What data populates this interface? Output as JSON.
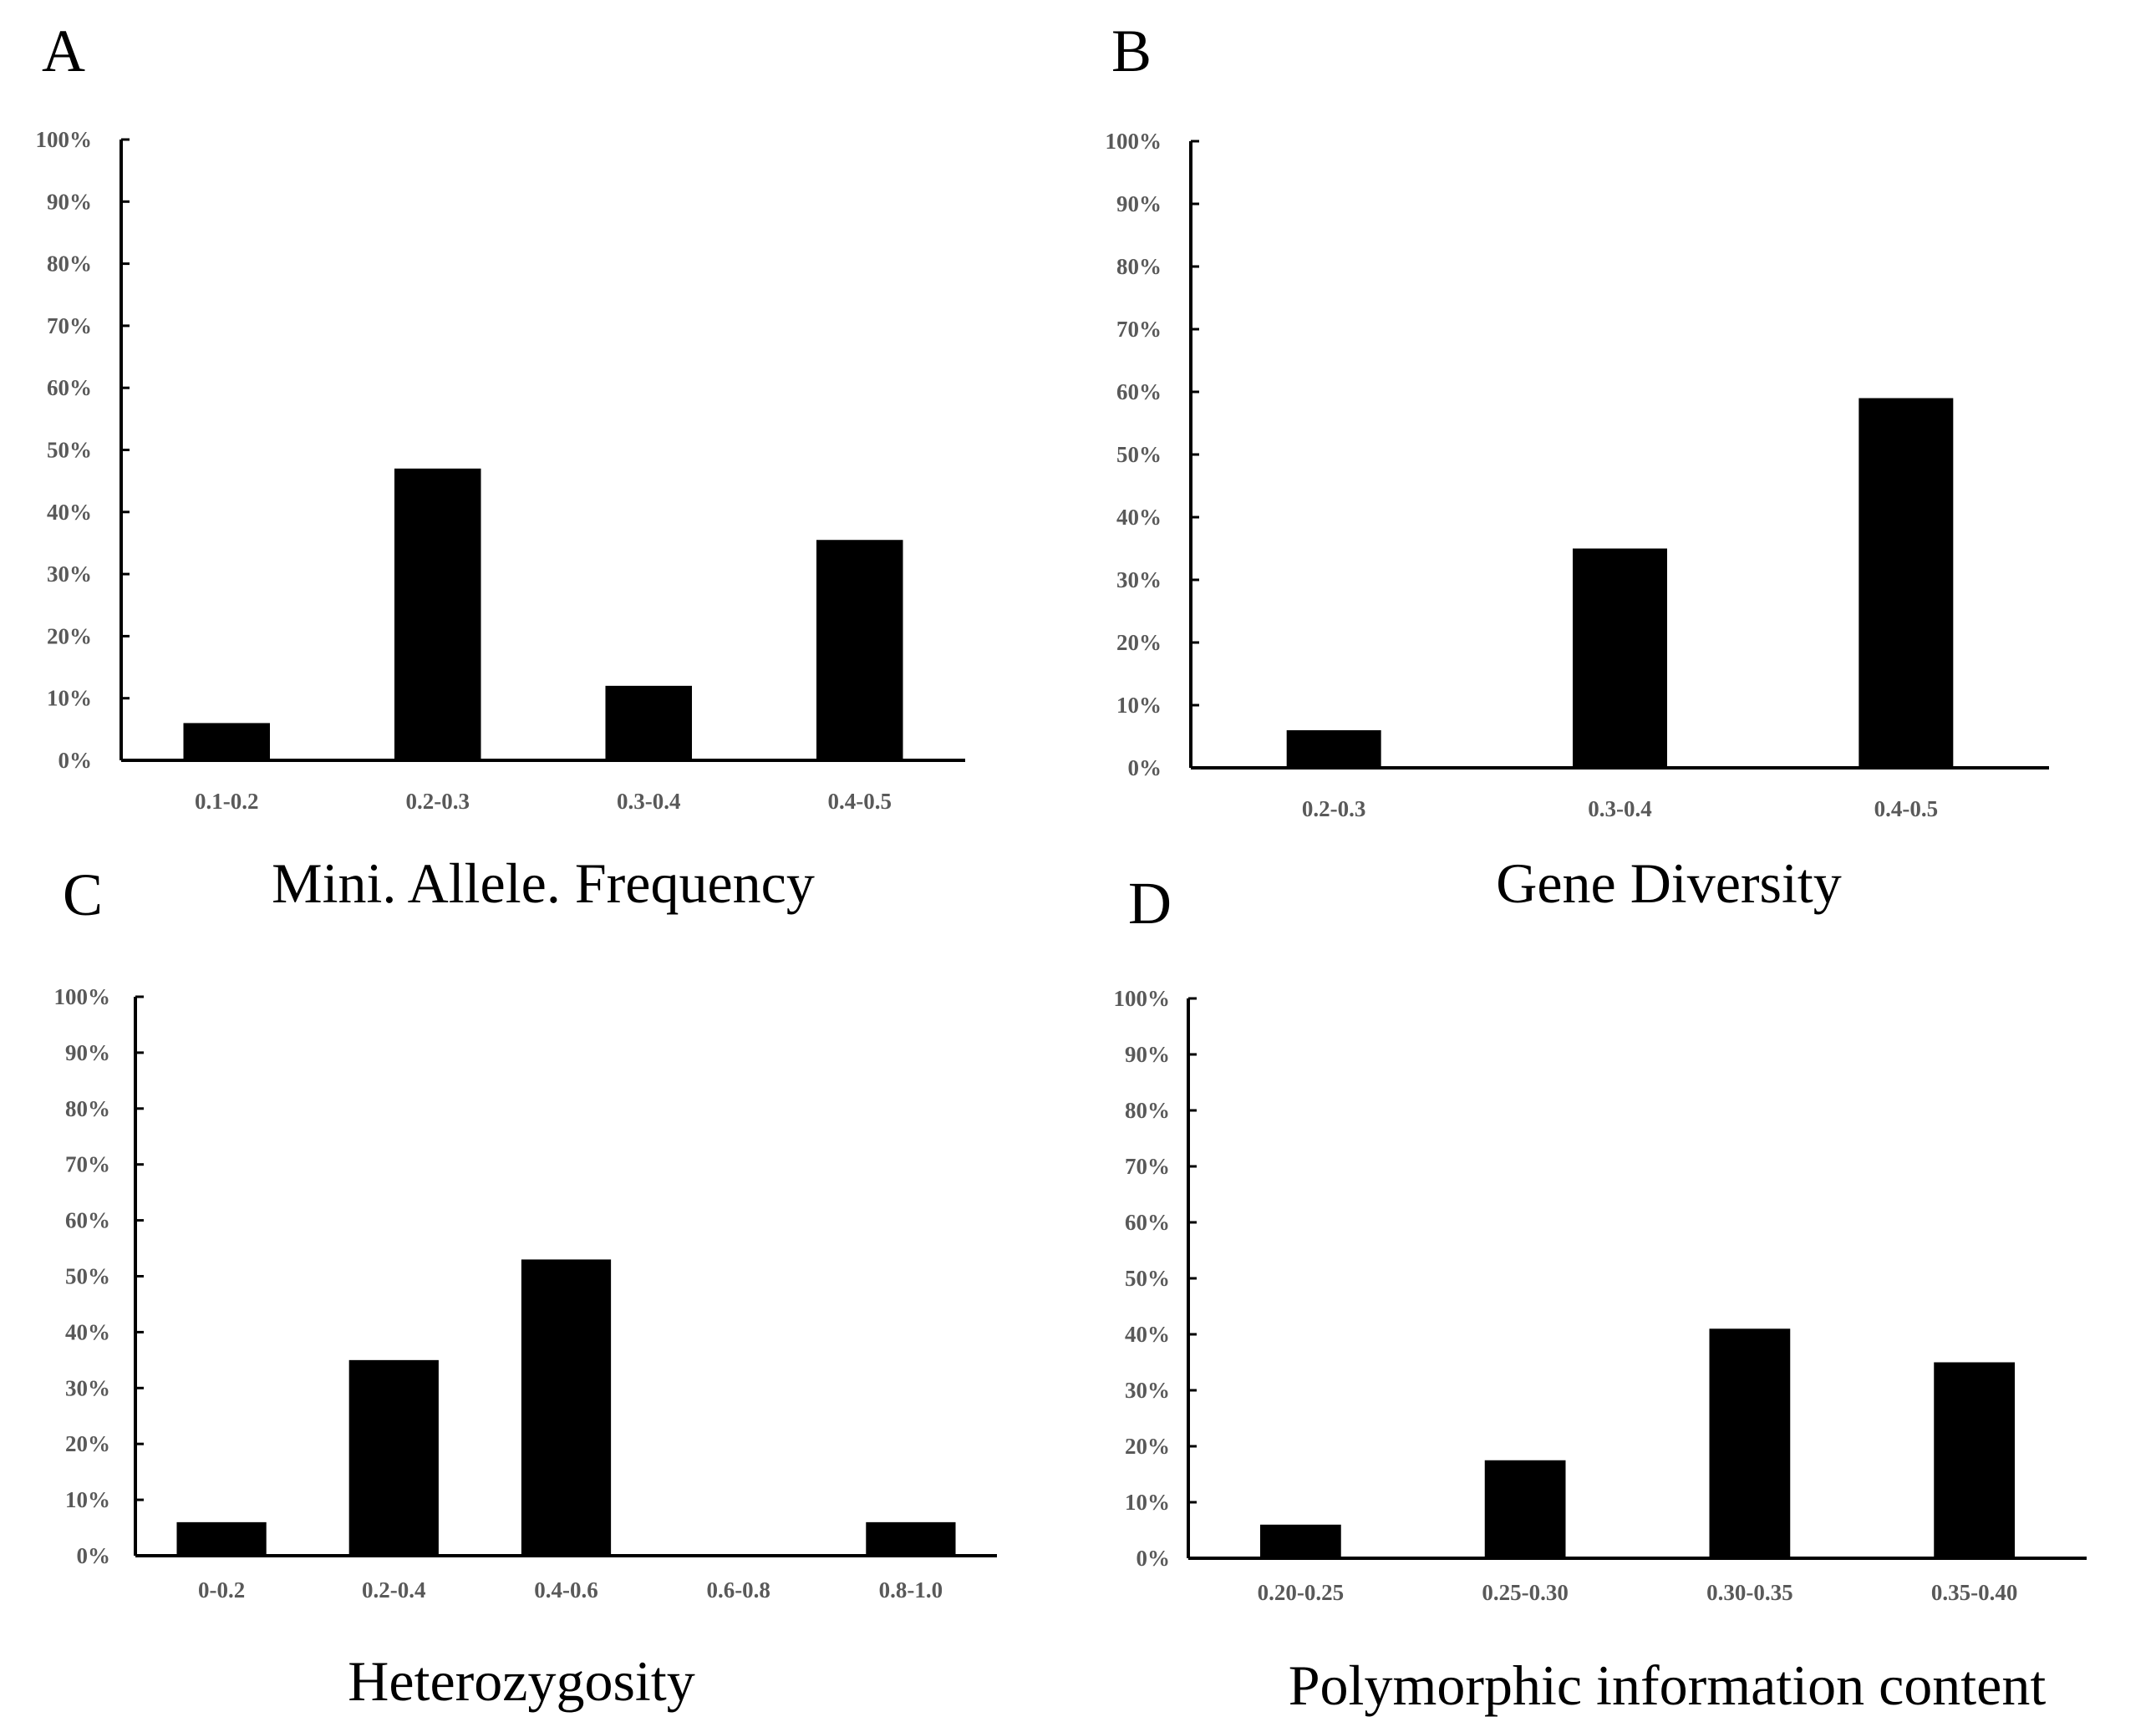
{
  "colors": {
    "bar": "#000000",
    "axis": "#000000",
    "tick_text": "#595959",
    "background": "#ffffff"
  },
  "chart_data": [
    {
      "type": "bar",
      "panel": "A",
      "title": "Mini. Allele. Frequency",
      "categories": [
        "0.1-0.2",
        "0.2-0.3",
        "0.3-0.4",
        "0.4-0.5"
      ],
      "values": [
        6,
        47,
        12,
        35.5
      ],
      "ylim": [
        0,
        100
      ],
      "yticks": [
        "0%",
        "10%",
        "20%",
        "30%",
        "40%",
        "50%",
        "60%",
        "70%",
        "80%",
        "90%",
        "100%"
      ],
      "xlabel": "Mini. Allele. Frequency",
      "ylabel": ""
    },
    {
      "type": "bar",
      "panel": "B",
      "title": "Gene Diversity",
      "categories": [
        "0.2-0.3",
        "0.3-0.4",
        "0.4-0.5"
      ],
      "values": [
        6,
        35,
        59
      ],
      "ylim": [
        0,
        100
      ],
      "yticks": [
        "0%",
        "10%",
        "20%",
        "30%",
        "40%",
        "50%",
        "60%",
        "70%",
        "80%",
        "90%",
        "100%"
      ],
      "xlabel": "Gene Diversity",
      "ylabel": ""
    },
    {
      "type": "bar",
      "panel": "C",
      "title": "Heterozygosity",
      "categories": [
        "0-0.2",
        "0.2-0.4",
        "0.4-0.6",
        "0.6-0.8",
        "0.8-1.0"
      ],
      "values": [
        6,
        35,
        53,
        0,
        6
      ],
      "ylim": [
        0,
        100
      ],
      "yticks": [
        "0%",
        "10%",
        "20%",
        "30%",
        "40%",
        "50%",
        "60%",
        "70%",
        "80%",
        "90%",
        "100%"
      ],
      "xlabel": "Heterozygosity",
      "ylabel": ""
    },
    {
      "type": "bar",
      "panel": "D",
      "title": "Polymorphic information content",
      "categories": [
        "0.20-0.25",
        "0.25-0.30",
        "0.30-0.35",
        "0.35-0.40"
      ],
      "values": [
        6,
        17.5,
        41,
        35
      ],
      "ylim": [
        0,
        100
      ],
      "yticks": [
        "0%",
        "10%",
        "20%",
        "30%",
        "40%",
        "50%",
        "60%",
        "70%",
        "80%",
        "90%",
        "100%"
      ],
      "xlabel": "Polymorphic information content",
      "ylabel": ""
    }
  ]
}
